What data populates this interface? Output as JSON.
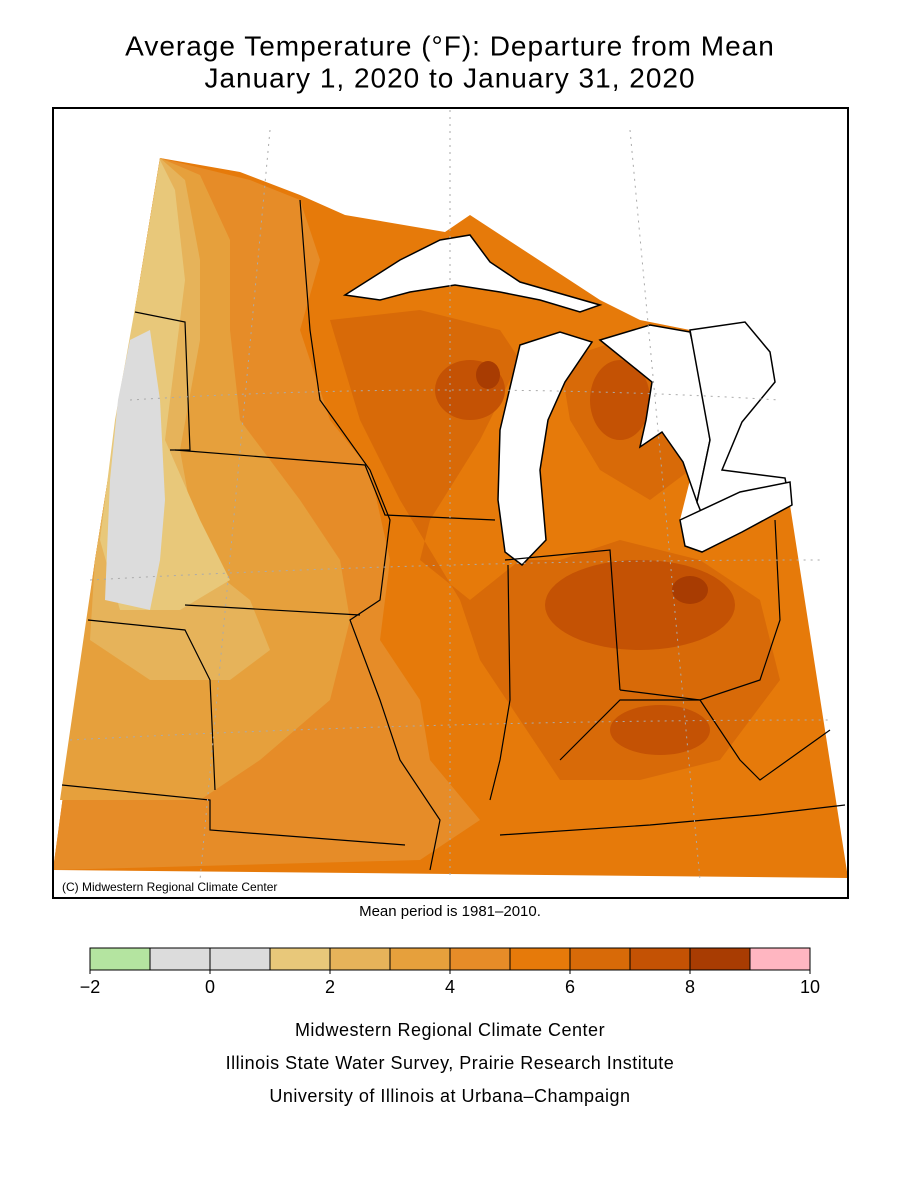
{
  "header": {
    "title": "Average Temperature (°F): Departure from Mean",
    "subtitle": "January 1, 2020 to January 31, 2020"
  },
  "map": {
    "credit": "(C) Midwestern Regional Climate Center",
    "note": "Mean period is 1981–2010."
  },
  "colorbar": {
    "bins": [
      -2,
      -1,
      0,
      1,
      2,
      3,
      4,
      5,
      6,
      7,
      8,
      9,
      10
    ],
    "colors": [
      "#b4e4a0",
      "#dcdcdc",
      "#dcdcdc",
      "#e8c87a",
      "#e6b35a",
      "#e6a03c",
      "#e68c28",
      "#e67a0a",
      "#d86a08",
      "#c45204",
      "#a83c02",
      "#ffb6c1"
    ],
    "ticks": [
      {
        "value": -2,
        "label": "−2"
      },
      0,
      2,
      4,
      6,
      8,
      10
    ]
  },
  "footer": {
    "lines": [
      "Midwestern Regional Climate Center",
      "Illinois State Water Survey, Prairie Research Institute",
      "University of Illinois at Urbana–Champaign"
    ]
  }
}
